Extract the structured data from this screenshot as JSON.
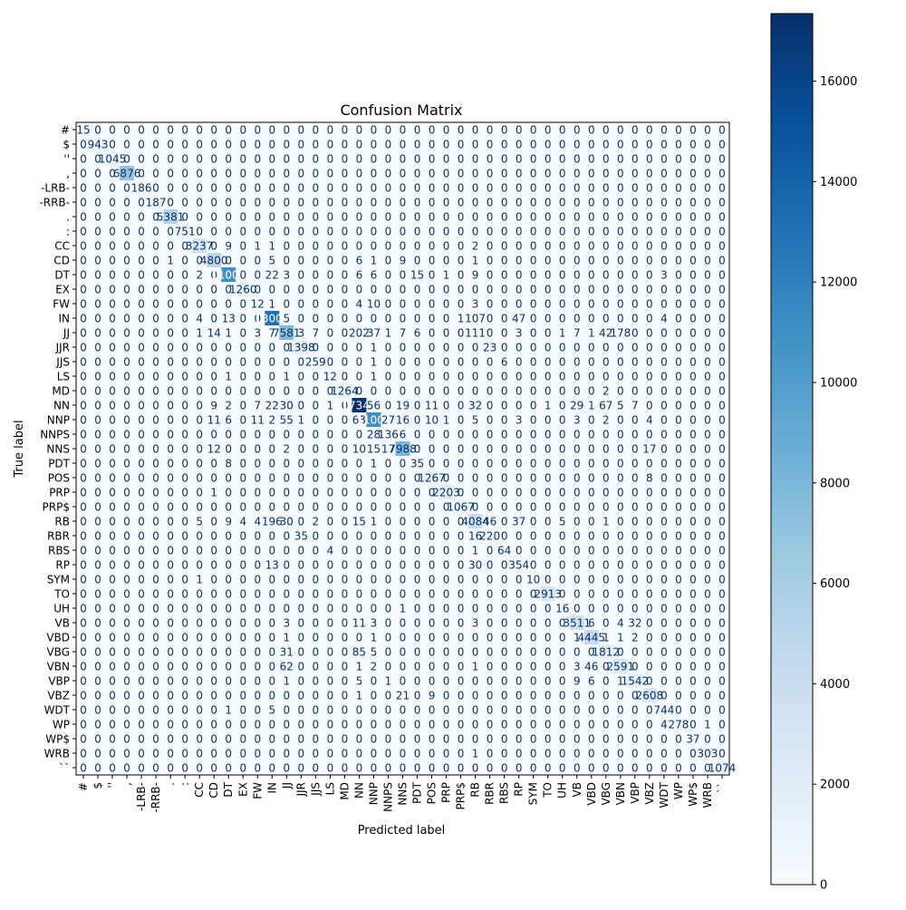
{
  "chart_data": {
    "type": "heatmap",
    "title": "Confusion Matrix",
    "xlabel": "Predicted label",
    "ylabel": "True label",
    "labels": [
      "#",
      "$",
      "''",
      ",",
      "-LRB-",
      "-RRB-",
      ".",
      ":",
      "CC",
      "CD",
      "DT",
      "EX",
      "FW",
      "IN",
      "JJ",
      "JJR",
      "JJS",
      "LS",
      "MD",
      "NN",
      "NNP",
      "NNPS",
      "NNS",
      "PDT",
      "POS",
      "PRP",
      "PRP$",
      "RB",
      "RBR",
      "RBS",
      "RP",
      "SYM",
      "TO",
      "UH",
      "VB",
      "VBD",
      "VBG",
      "VBN",
      "VBP",
      "VBZ",
      "WDT",
      "WP",
      "WP$",
      "WRB",
      "``"
    ],
    "nonzero": [
      [
        0,
        0,
        15
      ],
      [
        1,
        1,
        943
      ],
      [
        2,
        2,
        1045
      ],
      [
        3,
        3,
        6876
      ],
      [
        4,
        4,
        186
      ],
      [
        5,
        5,
        187
      ],
      [
        6,
        6,
        5381
      ],
      [
        7,
        7,
        751
      ],
      [
        8,
        8,
        3237
      ],
      [
        8,
        10,
        9
      ],
      [
        8,
        12,
        1
      ],
      [
        8,
        13,
        1
      ],
      [
        8,
        27,
        2
      ],
      [
        9,
        9,
        4800
      ],
      [
        9,
        6,
        1
      ],
      [
        9,
        13,
        5
      ],
      [
        9,
        19,
        6
      ],
      [
        9,
        20,
        1
      ],
      [
        9,
        22,
        9
      ],
      [
        9,
        27,
        1
      ],
      [
        10,
        10,
        11000
      ],
      [
        10,
        8,
        2
      ],
      [
        10,
        13,
        22
      ],
      [
        10,
        14,
        3
      ],
      [
        10,
        19,
        6
      ],
      [
        10,
        20,
        6
      ],
      [
        10,
        23,
        15
      ],
      [
        10,
        25,
        1
      ],
      [
        10,
        27,
        9
      ],
      [
        10,
        40,
        3
      ],
      [
        11,
        11,
        1260
      ],
      [
        12,
        12,
        12
      ],
      [
        12,
        13,
        1
      ],
      [
        12,
        19,
        4
      ],
      [
        12,
        20,
        10
      ],
      [
        12,
        27,
        3
      ],
      [
        13,
        13,
        13000
      ],
      [
        13,
        8,
        4
      ],
      [
        13,
        10,
        13
      ],
      [
        13,
        14,
        5
      ],
      [
        13,
        26,
        1
      ],
      [
        13,
        27,
        107
      ],
      [
        13,
        30,
        47
      ],
      [
        13,
        40,
        4
      ],
      [
        14,
        14,
        7581
      ],
      [
        14,
        8,
        1
      ],
      [
        14,
        9,
        14
      ],
      [
        14,
        10,
        1
      ],
      [
        14,
        12,
        3
      ],
      [
        14,
        13,
        7
      ],
      [
        14,
        15,
        3
      ],
      [
        14,
        16,
        7
      ],
      [
        14,
        19,
        202
      ],
      [
        14,
        20,
        37
      ],
      [
        14,
        21,
        1
      ],
      [
        14,
        22,
        7
      ],
      [
        14,
        23,
        6
      ],
      [
        14,
        27,
        111
      ],
      [
        14,
        30,
        3
      ],
      [
        14,
        33,
        1
      ],
      [
        14,
        34,
        7
      ],
      [
        14,
        35,
        1
      ],
      [
        14,
        36,
        42
      ],
      [
        14,
        37,
        178
      ],
      [
        15,
        15,
        1398
      ],
      [
        15,
        20,
        1
      ],
      [
        15,
        28,
        23
      ],
      [
        16,
        16,
        259
      ],
      [
        16,
        20,
        1
      ],
      [
        16,
        29,
        6
      ],
      [
        17,
        17,
        12
      ],
      [
        17,
        10,
        1
      ],
      [
        17,
        14,
        1
      ],
      [
        17,
        20,
        1
      ],
      [
        18,
        18,
        1264
      ],
      [
        18,
        36,
        2
      ],
      [
        19,
        19,
        17345
      ],
      [
        19,
        9,
        9
      ],
      [
        19,
        10,
        2
      ],
      [
        19,
        12,
        7
      ],
      [
        19,
        13,
        22
      ],
      [
        19,
        14,
        30
      ],
      [
        19,
        17,
        1
      ],
      [
        19,
        20,
        56
      ],
      [
        19,
        22,
        19
      ],
      [
        19,
        24,
        11
      ],
      [
        19,
        27,
        32
      ],
      [
        19,
        32,
        1
      ],
      [
        19,
        34,
        29
      ],
      [
        19,
        35,
        1
      ],
      [
        19,
        36,
        67
      ],
      [
        19,
        37,
        5
      ],
      [
        19,
        38,
        7
      ],
      [
        20,
        20,
        11000
      ],
      [
        20,
        9,
        11
      ],
      [
        20,
        10,
        6
      ],
      [
        20,
        12,
        11
      ],
      [
        20,
        13,
        2
      ],
      [
        20,
        14,
        55
      ],
      [
        20,
        15,
        1
      ],
      [
        20,
        19,
        63
      ],
      [
        20,
        21,
        27
      ],
      [
        20,
        22,
        16
      ],
      [
        20,
        24,
        10
      ],
      [
        20,
        25,
        1
      ],
      [
        20,
        27,
        5
      ],
      [
        20,
        30,
        3
      ],
      [
        20,
        34,
        3
      ],
      [
        20,
        36,
        2
      ],
      [
        20,
        39,
        4
      ],
      [
        21,
        21,
        136
      ],
      [
        21,
        20,
        28
      ],
      [
        21,
        22,
        6
      ],
      [
        22,
        22,
        7988
      ],
      [
        22,
        9,
        12
      ],
      [
        22,
        14,
        2
      ],
      [
        22,
        19,
        10
      ],
      [
        22,
        20,
        15
      ],
      [
        22,
        21,
        17
      ],
      [
        22,
        39,
        17
      ],
      [
        23,
        23,
        35
      ],
      [
        23,
        10,
        8
      ],
      [
        23,
        20,
        1
      ],
      [
        24,
        24,
        1267
      ],
      [
        24,
        39,
        8
      ],
      [
        25,
        25,
        2203
      ],
      [
        25,
        9,
        1
      ],
      [
        26,
        26,
        1067
      ],
      [
        27,
        27,
        4084
      ],
      [
        27,
        8,
        5
      ],
      [
        27,
        10,
        9
      ],
      [
        27,
        11,
        4
      ],
      [
        27,
        12,
        4
      ],
      [
        27,
        13,
        196
      ],
      [
        27,
        14,
        30
      ],
      [
        27,
        16,
        2
      ],
      [
        27,
        19,
        15
      ],
      [
        27,
        20,
        1
      ],
      [
        27,
        28,
        46
      ],
      [
        27,
        30,
        37
      ],
      [
        27,
        33,
        5
      ],
      [
        27,
        36,
        1
      ],
      [
        28,
        28,
        220
      ],
      [
        28,
        15,
        35
      ],
      [
        28,
        27,
        16
      ],
      [
        29,
        29,
        64
      ],
      [
        29,
        17,
        4
      ],
      [
        29,
        27,
        1
      ],
      [
        30,
        30,
        354
      ],
      [
        30,
        13,
        13
      ],
      [
        30,
        27,
        30
      ],
      [
        31,
        31,
        10
      ],
      [
        31,
        8,
        1
      ],
      [
        32,
        32,
        2913
      ],
      [
        33,
        33,
        16
      ],
      [
        33,
        22,
        1
      ],
      [
        34,
        34,
        3511
      ],
      [
        34,
        14,
        3
      ],
      [
        34,
        19,
        11
      ],
      [
        34,
        20,
        3
      ],
      [
        34,
        27,
        3
      ],
      [
        34,
        35,
        6
      ],
      [
        34,
        37,
        4
      ],
      [
        34,
        38,
        32
      ],
      [
        35,
        35,
        4445
      ],
      [
        35,
        14,
        1
      ],
      [
        35,
        20,
        1
      ],
      [
        35,
        34,
        1
      ],
      [
        35,
        36,
        1
      ],
      [
        35,
        37,
        1
      ],
      [
        35,
        38,
        2
      ],
      [
        36,
        36,
        1812
      ],
      [
        36,
        14,
        31
      ],
      [
        36,
        19,
        85
      ],
      [
        36,
        20,
        5
      ],
      [
        37,
        37,
        2591
      ],
      [
        37,
        14,
        62
      ],
      [
        37,
        19,
        1
      ],
      [
        37,
        20,
        2
      ],
      [
        37,
        27,
        1
      ],
      [
        37,
        34,
        3
      ],
      [
        37,
        35,
        46
      ],
      [
        38,
        38,
        1542
      ],
      [
        38,
        14,
        1
      ],
      [
        38,
        19,
        5
      ],
      [
        38,
        21,
        1
      ],
      [
        38,
        34,
        9
      ],
      [
        38,
        35,
        6
      ],
      [
        38,
        37,
        1
      ],
      [
        39,
        39,
        2608
      ],
      [
        39,
        19,
        1
      ],
      [
        39,
        22,
        21
      ],
      [
        39,
        24,
        9
      ],
      [
        40,
        40,
        744
      ],
      [
        40,
        10,
        1
      ],
      [
        40,
        13,
        5
      ],
      [
        41,
        41,
        278
      ],
      [
        41,
        40,
        4
      ],
      [
        41,
        43,
        1
      ],
      [
        42,
        42,
        37
      ],
      [
        43,
        43,
        303
      ],
      [
        43,
        27,
        1
      ],
      [
        44,
        44,
        1074
      ]
    ],
    "colorbar": {
      "min": 0,
      "max": 17345,
      "ticks": [
        0,
        2000,
        4000,
        6000,
        8000,
        10000,
        12000,
        14000,
        16000
      ]
    },
    "colormap": "Blues",
    "grid": false,
    "legend": "colorbar-right"
  }
}
